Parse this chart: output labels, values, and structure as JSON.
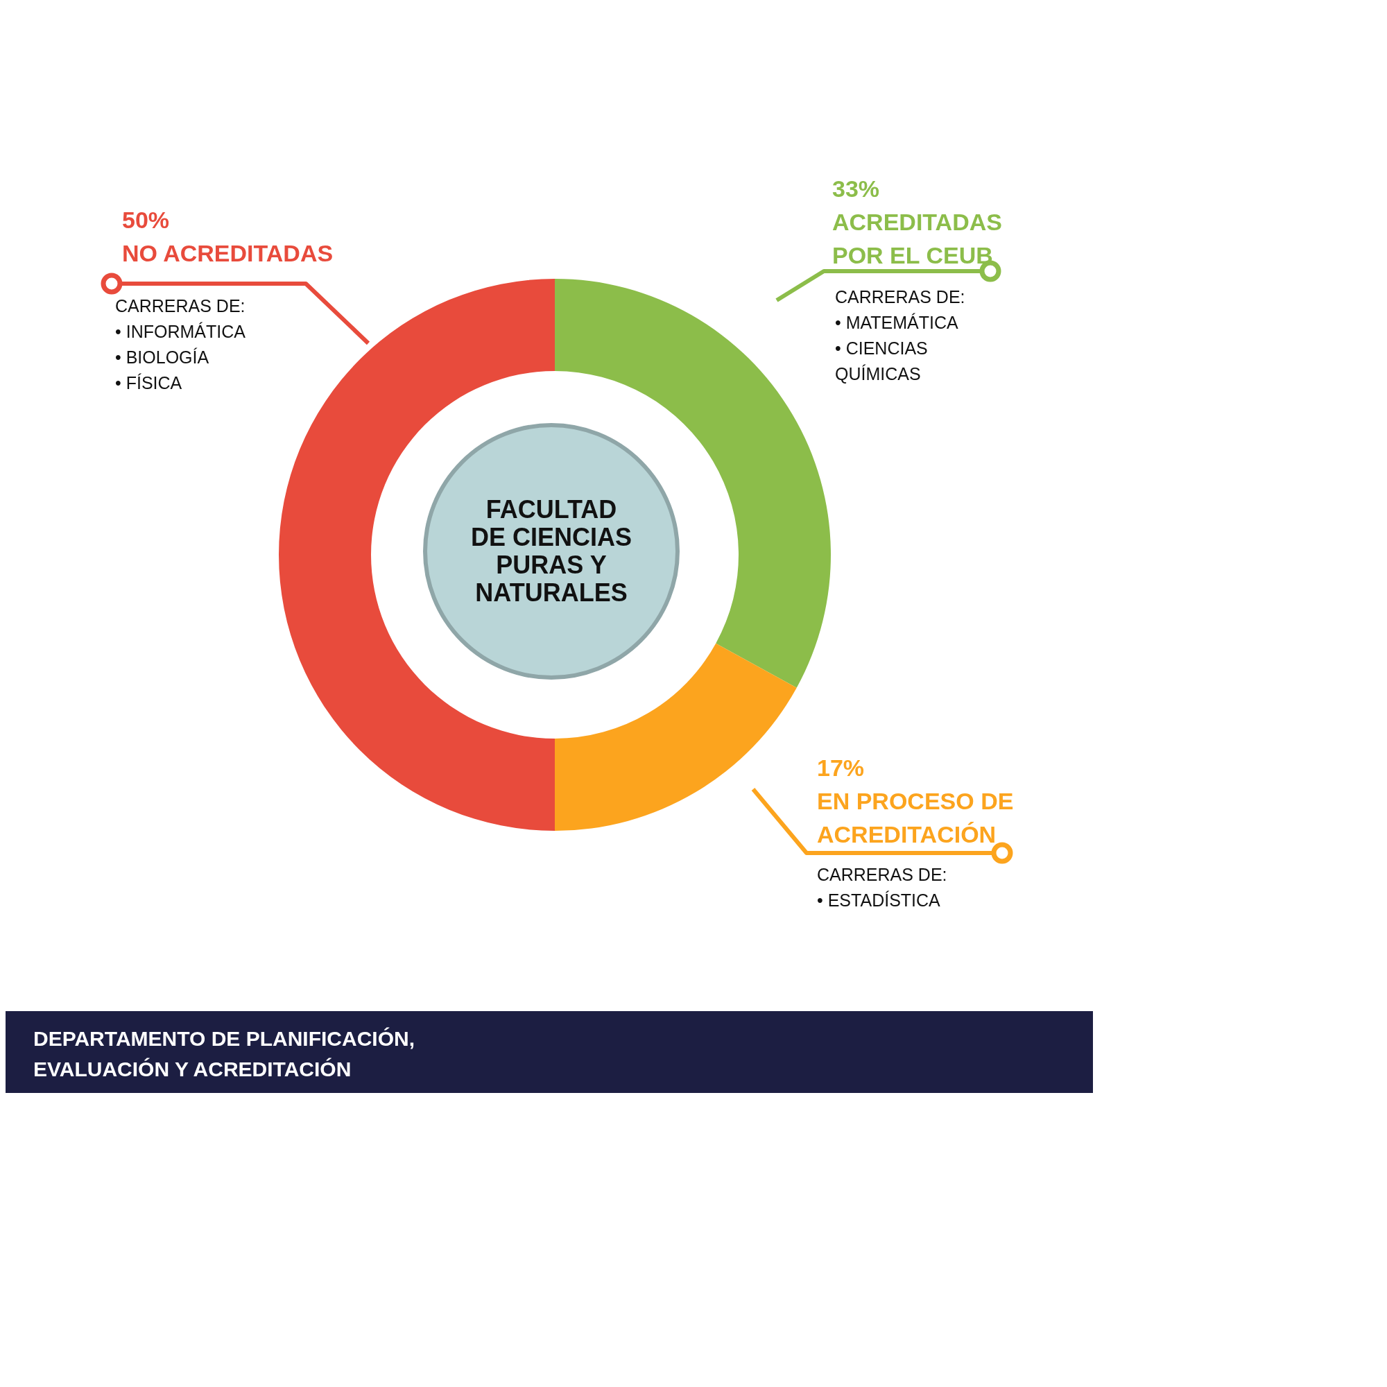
{
  "chart_data": {
    "type": "donut",
    "title": "FACULTAD DE CIENCIAS PURAS Y NATURALES",
    "subtitle": "DEPARTAMENTO DE PLANIFICACIÓN,\nEVALUACIÓN Y ACREDITACIÓN",
    "categories": [
      "ACREDITADAS POR EL CEUB",
      "EN PROCESO DE ACREDITACIÓN",
      "NO ACREDITADAS"
    ],
    "values": [
      33,
      17,
      50
    ],
    "colors": [
      "#8cbd4a",
      "#fca41e",
      "#e84b3c"
    ],
    "value_labels": [
      "33%",
      "17%",
      "50%"
    ],
    "annotations": [
      "CARRERAS DE:\n• MATEMÁTICA\n• CIENCIAS\n   QUÍMICAS",
      "CARRERAS DE:\n• ESTADÍSTICA",
      "CARRERAS DE:\n• INFORMÁTICA\n• BIOLOGÍA\n• FÍSICA"
    ]
  }
}
